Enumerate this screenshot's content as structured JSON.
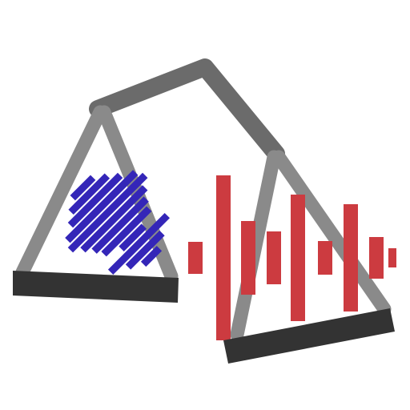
{
  "icon": {
    "name": "audio-balance-scale-icon",
    "colors": {
      "background": "#ffffff",
      "beam": "#6b6b6b",
      "frame": "#8a8a8a",
      "pan": "#333333",
      "left_waveform": "#3426b8",
      "right_waveform": "#cc3b40"
    }
  }
}
